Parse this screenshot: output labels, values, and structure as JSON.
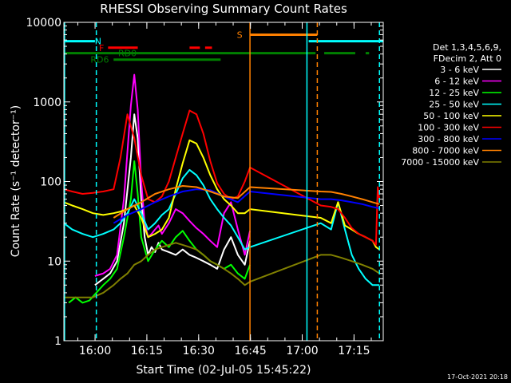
{
  "chart_data": {
    "type": "line",
    "title": "RHESSI Observing Summary Count Rates",
    "xlabel": "Start Time (02-Jul-05 15:45:22)",
    "ylabel": "Count Rate (s⁻¹ detector⁻¹)",
    "y_scale": "log",
    "ylim": [
      1,
      10000
    ],
    "xlim_minutes": [
      5.6,
      98.1
    ],
    "x_tick_labels": [
      "16:00",
      "16:15",
      "16:30",
      "16:45",
      "17:00",
      "17:15"
    ],
    "x_tick_values_minutes": [
      14.633,
      29.633,
      44.633,
      59.633,
      74.633,
      89.633
    ],
    "y_tick_labels": [
      "1",
      "10",
      "100",
      "1000",
      "10000"
    ],
    "y_tick_values": [
      1,
      10,
      100,
      1000,
      10000
    ],
    "legend": {
      "header": [
        "Det 1,3,4,5,6,9,",
        "FDecim 2, Att 0"
      ],
      "placement": "right",
      "entries": [
        {
          "label": "3 - 6 keV",
          "color": "#ffffff"
        },
        {
          "label": "6 - 12 keV",
          "color": "#ff00ff"
        },
        {
          "label": "12 - 25 keV",
          "color": "#00ff00"
        },
        {
          "label": "25 - 50 keV",
          "color": "#00ffff"
        },
        {
          "label": "50 - 100 keV",
          "color": "#ffff00"
        },
        {
          "label": "100 - 300 keV",
          "color": "#ff0000"
        },
        {
          "label": "300 - 800 keV",
          "color": "#0000ff"
        },
        {
          "label": "800 - 7000 keV",
          "color": "#ff8000"
        },
        {
          "label": "7000 - 15000 keV",
          "color": "#808000"
        }
      ]
    },
    "flag_bars": [
      {
        "label": "N",
        "color": "#00ffff",
        "level": 5800,
        "segments": [
          [
            5.6,
            14.6
          ],
          [
            76.5,
            98.1
          ]
        ],
        "label_at": 15.5
      },
      {
        "label": "S",
        "color": "#ff8000",
        "level": 7000,
        "segments": [
          [
            59.5,
            79.0
          ]
        ],
        "label_at": 56.5
      },
      {
        "label": "F",
        "color": "#ff0000",
        "level": 4800,
        "segments": [
          [
            18.4,
            27.0
          ],
          [
            42.0,
            45.0
          ],
          [
            46.5,
            48.5
          ]
        ],
        "label_at": 16.5
      },
      {
        "label": "RD0",
        "color": "#008000",
        "level": 4100,
        "segments": [
          [
            5.6,
            78.5
          ],
          [
            81.0,
            90.0
          ],
          [
            93.0,
            94.0
          ]
        ],
        "label_at": 24.0
      },
      {
        "label": "RD6",
        "color": "#008000",
        "level": 3400,
        "segments": [
          [
            20.0,
            51.0
          ]
        ],
        "label_at": 16.0
      }
    ],
    "vertical_markers": [
      {
        "x": 5.8,
        "color": "#00ffff",
        "style": "solid"
      },
      {
        "x": 15.0,
        "color": "#00ffff",
        "style": "dashed"
      },
      {
        "x": 59.5,
        "color": "#ff8000",
        "style": "solid"
      },
      {
        "x": 76.0,
        "color": "#00ffff",
        "style": "solid"
      },
      {
        "x": 79.0,
        "color": "#ff8000",
        "style": "dashed"
      },
      {
        "x": 97.0,
        "color": "#00ffff",
        "style": "dashed"
      }
    ],
    "series": [
      {
        "name": "3 - 6 keV",
        "color": "#ffffff",
        "x": [
          14.6,
          17,
          19,
          21,
          23,
          25,
          26,
          27,
          28,
          29,
          30,
          31,
          32,
          33,
          34,
          36,
          38,
          40,
          42,
          44,
          46,
          48,
          50,
          52,
          54,
          56,
          58,
          59.5
        ],
        "y": [
          5,
          6,
          7,
          10,
          30,
          200,
          700,
          350,
          60,
          20,
          12,
          15,
          13,
          17,
          14,
          13,
          12,
          14,
          12,
          11,
          10,
          9,
          8,
          14,
          20,
          12,
          9,
          18
        ]
      },
      {
        "name": "6 - 12 keV",
        "color": "#ff00ff",
        "x": [
          14.6,
          17,
          19,
          21,
          23,
          25,
          26,
          27,
          28,
          29,
          30,
          31,
          32,
          33,
          34,
          36,
          38,
          40,
          42,
          44,
          46,
          48,
          50,
          52,
          54,
          56,
          58,
          59.5
        ],
        "y": [
          6.5,
          7,
          8,
          12,
          60,
          900,
          2200,
          800,
          100,
          30,
          20,
          22,
          25,
          28,
          22,
          30,
          45,
          40,
          32,
          26,
          22,
          18,
          15,
          40,
          55,
          25,
          12,
          24
        ]
      },
      {
        "name": "12 - 25 keV",
        "color": "#00ff00",
        "x": [
          7,
          9,
          11,
          13,
          15,
          17,
          19,
          21,
          23,
          25,
          26,
          27,
          28,
          30,
          32,
          34,
          36,
          38,
          40,
          42,
          44,
          46,
          48,
          50,
          52,
          54,
          56,
          58,
          59.5
        ],
        "y": [
          3,
          3.5,
          3,
          3.2,
          4,
          5,
          6,
          8,
          20,
          60,
          180,
          70,
          20,
          10,
          14,
          18,
          15,
          20,
          24,
          18,
          14,
          12,
          10,
          9,
          8,
          9,
          7,
          6,
          9
        ]
      },
      {
        "name": "25 - 50 keV",
        "color": "#00ffff",
        "x": [
          5.6,
          8,
          11,
          14,
          17,
          20,
          22,
          24,
          26,
          28,
          30,
          32,
          34,
          36,
          38,
          40,
          42,
          44,
          46,
          48,
          50,
          52,
          54,
          56,
          58,
          59.5,
          80,
          83,
          85,
          87,
          89,
          91,
          93,
          95,
          96,
          97
        ],
        "y": [
          30,
          25,
          22,
          20,
          22,
          25,
          30,
          40,
          60,
          40,
          25,
          30,
          38,
          45,
          70,
          110,
          140,
          120,
          90,
          60,
          45,
          35,
          28,
          20,
          14,
          15,
          30,
          25,
          55,
          25,
          12,
          8,
          6,
          5,
          5,
          5
        ]
      },
      {
        "name": "50 - 100 keV",
        "color": "#ffff00",
        "x": [
          5.6,
          8,
          11,
          14,
          17,
          20,
          22,
          24,
          26,
          28,
          30,
          32,
          34,
          36,
          38,
          40,
          42,
          44,
          46,
          48,
          50,
          52,
          54,
          56,
          58,
          59.5,
          80,
          83,
          85,
          87,
          89,
          91,
          93,
          95,
          96,
          97
        ],
        "y": [
          55,
          50,
          45,
          40,
          38,
          40,
          42,
          45,
          50,
          35,
          20,
          22,
          25,
          35,
          80,
          170,
          330,
          300,
          200,
          120,
          80,
          60,
          50,
          40,
          40,
          45,
          35,
          30,
          55,
          28,
          25,
          22,
          20,
          18,
          15,
          14
        ]
      },
      {
        "name": "100 - 300 keV",
        "color": "#ff0000",
        "x": [
          5.6,
          8,
          11,
          14,
          17,
          20,
          22,
          24,
          26,
          28,
          30,
          32,
          34,
          36,
          38,
          40,
          42,
          44,
          46,
          48,
          50,
          52,
          54,
          56,
          58,
          59.5,
          80,
          83,
          85,
          87,
          89,
          91,
          93,
          95,
          96,
          96.5,
          97
        ],
        "y": [
          80,
          75,
          70,
          72,
          75,
          80,
          200,
          700,
          350,
          120,
          60,
          55,
          65,
          100,
          200,
          400,
          780,
          700,
          400,
          180,
          95,
          70,
          60,
          65,
          100,
          150,
          50,
          48,
          45,
          35,
          26,
          22,
          20,
          18,
          16,
          85,
          60
        ]
      },
      {
        "name": "300 - 800 keV",
        "color": "#0000ff",
        "x": [
          20,
          24,
          28,
          32,
          36,
          40,
          44,
          48,
          52,
          56,
          59.5,
          80,
          83,
          86,
          89,
          92,
          95,
          97
        ],
        "y": [
          30,
          38,
          45,
          55,
          65,
          75,
          80,
          78,
          65,
          55,
          75,
          60,
          60,
          58,
          55,
          52,
          48,
          46
        ]
      },
      {
        "name": "800 - 7000 keV",
        "color": "#ff8000",
        "x": [
          20,
          24,
          28,
          32,
          36,
          40,
          44,
          48,
          52,
          56,
          59.5,
          80,
          83,
          86,
          89,
          92,
          95,
          97
        ],
        "y": [
          35,
          45,
          55,
          70,
          80,
          88,
          85,
          75,
          65,
          62,
          85,
          75,
          74,
          70,
          65,
          60,
          55,
          52
        ]
      },
      {
        "name": "7000 - 15000 keV",
        "color": "#808000",
        "x": [
          5.6,
          8,
          11,
          14,
          17,
          20,
          22,
          24,
          26,
          28,
          30,
          32,
          34,
          36,
          38,
          40,
          42,
          44,
          46,
          48,
          50,
          52,
          54,
          56,
          58,
          59.5,
          80,
          83,
          86,
          89,
          92,
          95,
          97
        ],
        "y": [
          3.5,
          3.5,
          3.5,
          3.5,
          4,
          5,
          6,
          7,
          9,
          10,
          12,
          14,
          15,
          16,
          17,
          16,
          15,
          14,
          12,
          10,
          9,
          8,
          7,
          6,
          5,
          5.5,
          12,
          12,
          11,
          10,
          9,
          8,
          7
        ]
      }
    ]
  },
  "footer_timestamp": "17-Oct-2021 20:18"
}
